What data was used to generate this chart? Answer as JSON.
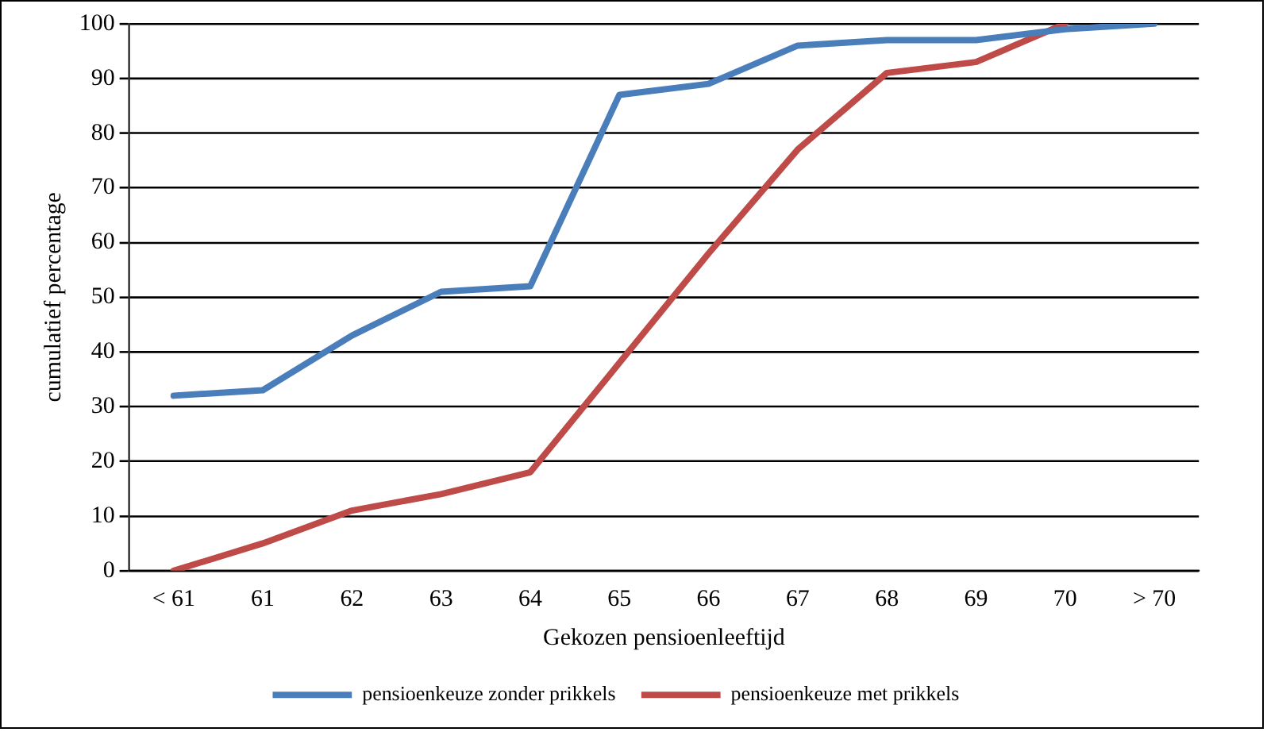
{
  "chart_data": {
    "type": "line",
    "xlabel": "Gekozen pensioenleeftijd",
    "ylabel": "cumulatief percentage",
    "categories": [
      "< 61",
      "61",
      "62",
      "63",
      "64",
      "65",
      "66",
      "67",
      "68",
      "69",
      "70",
      "> 70"
    ],
    "series": [
      {
        "name": "pensioenkeuze zonder prikkels",
        "color": "#4a7ebb",
        "values": [
          32,
          33,
          43,
          51,
          52,
          87,
          89,
          96,
          97,
          97,
          99,
          100
        ]
      },
      {
        "name": "pensioenkeuze met prikkels",
        "color": "#be4b48",
        "values": [
          0,
          5,
          11,
          14,
          18,
          38,
          58,
          77,
          91,
          93,
          100,
          null
        ]
      }
    ],
    "ylim": [
      0,
      100
    ],
    "yticks": [
      0,
      10,
      20,
      30,
      40,
      50,
      60,
      70,
      80,
      90,
      100
    ],
    "grid": "y",
    "legend": "bottom",
    "marker": "none",
    "line_style": "solid"
  }
}
